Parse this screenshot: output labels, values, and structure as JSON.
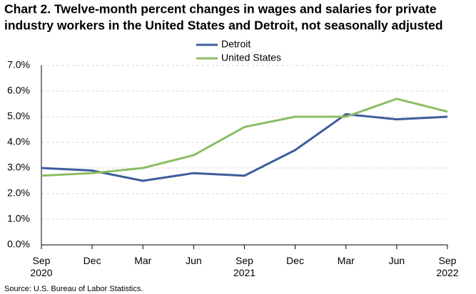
{
  "chart_data": {
    "type": "line",
    "title": [
      "Chart 2. Twelve-month percent changes in wages and salaries for private",
      "industry workers in the United States and Detroit, not seasonally adjusted"
    ],
    "categories": [
      "Sep 2020",
      "Dec",
      "Mar",
      "Jun",
      "Sep 2021",
      "Dec",
      "Mar",
      "Jun",
      "Sep 2022"
    ],
    "series": [
      {
        "name": "Detroit",
        "color": "#3c5d9c",
        "values": [
          3.0,
          2.9,
          2.5,
          2.8,
          2.7,
          3.7,
          5.1,
          4.9,
          5.0
        ]
      },
      {
        "name": "United States",
        "color": "#8bbd62",
        "values": [
          2.7,
          2.8,
          3.0,
          3.5,
          4.6,
          5.0,
          5.0,
          5.7,
          5.2
        ]
      }
    ],
    "ylim": [
      0,
      7
    ],
    "yticks": [
      {
        "value": 0,
        "label": "0.0%"
      },
      {
        "value": 1,
        "label": "1.0%"
      },
      {
        "value": 2,
        "label": "2.0%"
      },
      {
        "value": 3,
        "label": "3.0%"
      },
      {
        "value": 4,
        "label": "4.0%"
      },
      {
        "value": 5,
        "label": "5.0%"
      },
      {
        "value": 6,
        "label": "6.0%"
      },
      {
        "value": 7,
        "label": "7.0%"
      }
    ],
    "grid": true,
    "source": "Source: U.S. Bureau of Labor Statistics."
  }
}
